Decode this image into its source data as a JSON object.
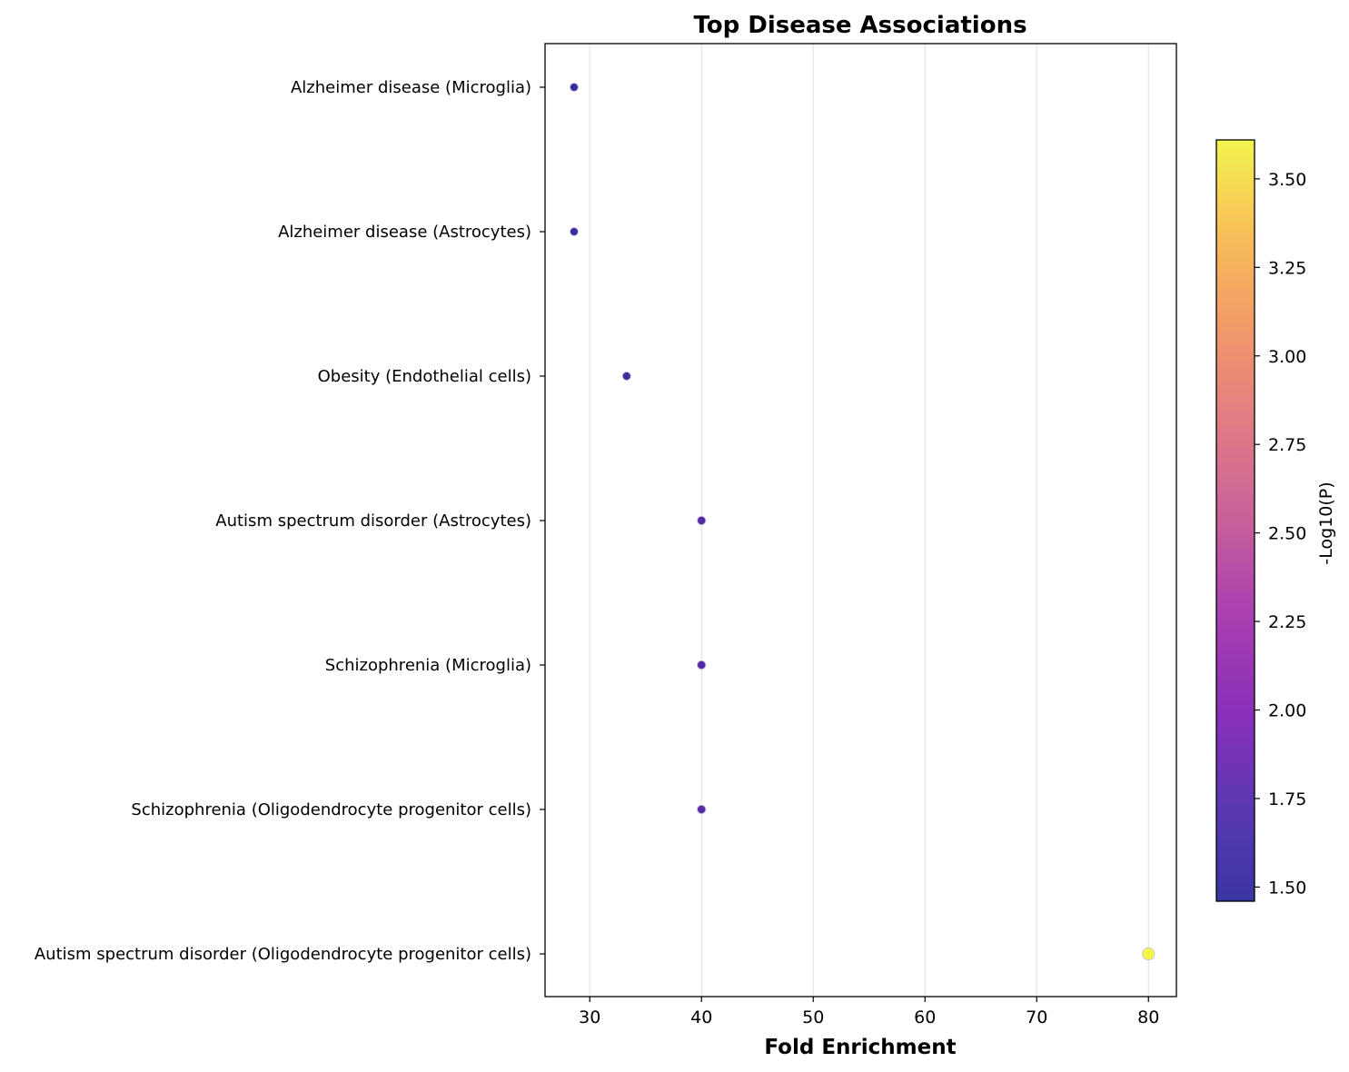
{
  "chart_data": {
    "type": "scatter",
    "title": "Top Disease Associations",
    "xlabel": "Fold Enrichment",
    "ylabel": "",
    "xlim": [
      26.0,
      82.5
    ],
    "xticks": [
      30,
      40,
      50,
      60,
      70,
      80
    ],
    "grid": "vertical",
    "points": [
      {
        "category": "Alzheimer disease (Microglia)",
        "x": 28.6,
        "neglog10p": 1.48
      },
      {
        "category": "Alzheimer disease (Astrocytes)",
        "x": 28.6,
        "neglog10p": 1.48
      },
      {
        "category": "Obesity (Endothelial cells)",
        "x": 33.3,
        "neglog10p": 1.55
      },
      {
        "category": "Autism spectrum disorder (Astrocytes)",
        "x": 40.0,
        "neglog10p": 1.65
      },
      {
        "category": "Schizophrenia (Microglia)",
        "x": 40.0,
        "neglog10p": 1.67
      },
      {
        "category": "Schizophrenia (Oligodendrocyte progenitor cells)",
        "x": 40.0,
        "neglog10p": 1.67
      },
      {
        "category": "Autism spectrum disorder (Oligodendrocyte progenitor cells)",
        "x": 80.0,
        "neglog10p": 3.6
      }
    ],
    "colorbar": {
      "label": "-Log10(P)",
      "colormap": "plasma",
      "range": [
        1.46,
        3.61
      ],
      "ticks": [
        "1.50",
        "1.75",
        "2.00",
        "2.25",
        "2.50",
        "2.75",
        "3.00",
        "3.25",
        "3.50"
      ]
    }
  }
}
